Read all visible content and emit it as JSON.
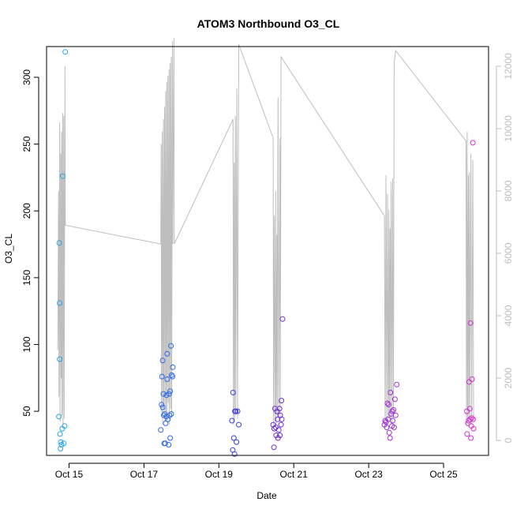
{
  "chart_data": {
    "type": "scatter",
    "title": "ATOM3 Northbound O3_CL",
    "xlabel": "Date",
    "ylabel": "O3_CL",
    "x_ticks": [
      "Oct 15",
      "Oct 17",
      "Oct 19",
      "Oct 21",
      "Oct 23",
      "Oct 25"
    ],
    "y_ticks": [
      50,
      100,
      150,
      200,
      250,
      300
    ],
    "y2_ticks": [
      0,
      2000,
      4000,
      6000,
      8000,
      10000,
      12000
    ],
    "xlim": [
      14.4,
      26.2
    ],
    "ylim": [
      17,
      323
    ],
    "y2lim": [
      -480,
      12630
    ],
    "grid": false,
    "legend": "none",
    "colors": {
      "points": [
        "#29a3e8",
        "#2b69e6",
        "#3a3fd8",
        "#6a2ed6",
        "#a030d8",
        "#d633d0"
      ],
      "altitude_line": "#bebebe",
      "secondary_axis": "#bebebe"
    },
    "series": [
      {
        "values": [
          [
            14.73,
            46
          ],
          [
            14.74,
            176
          ],
          [
            14.75,
            131
          ],
          [
            14.75,
            89
          ],
          [
            14.76,
            33
          ],
          [
            14.77,
            22
          ],
          [
            14.78,
            27
          ],
          [
            14.8,
            25
          ],
          [
            14.82,
            37
          ],
          [
            14.83,
            226
          ],
          [
            14.86,
            26
          ],
          [
            14.88,
            39
          ],
          [
            14.9,
            319
          ]
        ]
      },
      {
        "values": [
          [
            17.45,
            36
          ],
          [
            17.47,
            55
          ],
          [
            17.48,
            76
          ],
          [
            17.5,
            88
          ],
          [
            17.5,
            53
          ],
          [
            17.52,
            63
          ],
          [
            17.53,
            47
          ],
          [
            17.54,
            26
          ],
          [
            17.55,
            48
          ],
          [
            17.57,
            26
          ],
          [
            17.58,
            41
          ],
          [
            17.6,
            62
          ],
          [
            17.6,
            46
          ],
          [
            17.62,
            74
          ],
          [
            17.62,
            93
          ],
          [
            17.64,
            44
          ],
          [
            17.66,
            25
          ],
          [
            17.67,
            63
          ],
          [
            17.68,
            47
          ],
          [
            17.7,
            65
          ],
          [
            17.7,
            30
          ],
          [
            17.72,
            99
          ],
          [
            17.73,
            48
          ],
          [
            17.74,
            77
          ],
          [
            17.76,
            76
          ],
          [
            17.77,
            83
          ]
        ]
      },
      {
        "values": [
          [
            19.35,
            43
          ],
          [
            19.37,
            21
          ],
          [
            19.38,
            64
          ],
          [
            19.4,
            30
          ],
          [
            19.42,
            18
          ],
          [
            19.43,
            50
          ],
          [
            19.45,
            50
          ],
          [
            19.47,
            27
          ],
          [
            19.5,
            50
          ],
          [
            19.53,
            40
          ]
        ]
      },
      {
        "values": [
          [
            20.45,
            40
          ],
          [
            20.47,
            23
          ],
          [
            20.48,
            37
          ],
          [
            20.5,
            52
          ],
          [
            20.52,
            38
          ],
          [
            20.53,
            32
          ],
          [
            20.55,
            50
          ],
          [
            20.57,
            44
          ],
          [
            20.58,
            30
          ],
          [
            20.6,
            36
          ],
          [
            20.62,
            52
          ],
          [
            20.63,
            32
          ],
          [
            20.64,
            47
          ],
          [
            20.66,
            40
          ],
          [
            20.67,
            58
          ],
          [
            20.68,
            44
          ],
          [
            20.7,
            119
          ]
        ]
      },
      {
        "values": [
          [
            23.42,
            40
          ],
          [
            23.44,
            43
          ],
          [
            23.46,
            42
          ],
          [
            23.48,
            38
          ],
          [
            23.5,
            56
          ],
          [
            23.52,
            44
          ],
          [
            23.53,
            55
          ],
          [
            23.55,
            34
          ],
          [
            23.57,
            30
          ],
          [
            23.58,
            64
          ],
          [
            23.6,
            48
          ],
          [
            23.62,
            39
          ],
          [
            23.63,
            50
          ],
          [
            23.64,
            43
          ],
          [
            23.66,
            51
          ],
          [
            23.68,
            38
          ],
          [
            23.7,
            59
          ],
          [
            23.72,
            47
          ],
          [
            23.75,
            70
          ]
        ]
      },
      {
        "values": [
          [
            25.62,
            50
          ],
          [
            25.63,
            33
          ],
          [
            25.65,
            41
          ],
          [
            25.67,
            43
          ],
          [
            25.68,
            72
          ],
          [
            25.7,
            52
          ],
          [
            25.71,
            44
          ],
          [
            25.72,
            116
          ],
          [
            25.73,
            30
          ],
          [
            25.74,
            39
          ],
          [
            25.75,
            45
          ],
          [
            25.76,
            74
          ],
          [
            25.78,
            251
          ],
          [
            25.79,
            44
          ],
          [
            25.8,
            37
          ]
        ]
      }
    ],
    "altitude_line": [
      [
        14.7,
        2900
      ],
      [
        14.72,
        8000
      ],
      [
        14.73,
        1400
      ],
      [
        14.75,
        10200
      ],
      [
        14.76,
        600
      ],
      [
        14.78,
        9200
      ],
      [
        14.79,
        2000
      ],
      [
        14.8,
        9900
      ],
      [
        14.81,
        800
      ],
      [
        14.83,
        10500
      ],
      [
        14.84,
        500
      ],
      [
        14.86,
        10400
      ],
      [
        14.87,
        700
      ],
      [
        14.89,
        12000
      ],
      [
        14.9,
        6900
      ],
      [
        17.45,
        6300
      ],
      [
        17.46,
        9500
      ],
      [
        17.47,
        900
      ],
      [
        17.49,
        9900
      ],
      [
        17.5,
        500
      ],
      [
        17.52,
        10300
      ],
      [
        17.53,
        1000
      ],
      [
        17.55,
        10700
      ],
      [
        17.56,
        600
      ],
      [
        17.58,
        11200
      ],
      [
        17.59,
        900
      ],
      [
        17.61,
        11500
      ],
      [
        17.62,
        600
      ],
      [
        17.64,
        11700
      ],
      [
        17.65,
        1200
      ],
      [
        17.67,
        11900
      ],
      [
        17.68,
        500
      ],
      [
        17.7,
        12100
      ],
      [
        17.71,
        1000
      ],
      [
        17.73,
        12300
      ],
      [
        17.74,
        700
      ],
      [
        17.76,
        12800
      ],
      [
        17.77,
        6300
      ],
      [
        17.8,
        12900
      ],
      [
        17.81,
        6300
      ],
      [
        19.38,
        10300
      ],
      [
        19.39,
        500
      ],
      [
        19.41,
        8900
      ],
      [
        19.42,
        600
      ],
      [
        19.44,
        10400
      ],
      [
        19.45,
        800
      ],
      [
        19.48,
        11300
      ],
      [
        19.5,
        700
      ],
      [
        19.53,
        12700
      ],
      [
        20.45,
        9700
      ],
      [
        20.46,
        500
      ],
      [
        20.48,
        7200
      ],
      [
        20.5,
        600
      ],
      [
        20.52,
        8000
      ],
      [
        20.53,
        500
      ],
      [
        20.55,
        6600
      ],
      [
        20.56,
        800
      ],
      [
        20.58,
        11000
      ],
      [
        20.6,
        700
      ],
      [
        20.63,
        9700
      ],
      [
        20.64,
        700
      ],
      [
        20.66,
        12300
      ],
      [
        23.42,
        7200
      ],
      [
        23.44,
        500
      ],
      [
        23.46,
        8500
      ],
      [
        23.48,
        600
      ],
      [
        23.5,
        7900
      ],
      [
        23.52,
        500
      ],
      [
        23.54,
        7400
      ],
      [
        23.55,
        700
      ],
      [
        23.57,
        6800
      ],
      [
        23.58,
        600
      ],
      [
        23.6,
        8300
      ],
      [
        23.62,
        500
      ],
      [
        23.64,
        8400
      ],
      [
        23.66,
        700
      ],
      [
        23.68,
        12100
      ],
      [
        23.72,
        12500
      ],
      [
        25.6,
        9600
      ],
      [
        25.61,
        500
      ],
      [
        25.63,
        9900
      ],
      [
        25.64,
        600
      ],
      [
        25.66,
        8500
      ],
      [
        25.67,
        500
      ],
      [
        25.69,
        8600
      ],
      [
        25.7,
        700
      ],
      [
        25.73,
        9200
      ],
      [
        25.75,
        500
      ],
      [
        25.78,
        9000
      ],
      [
        25.8,
        600
      ]
    ]
  }
}
